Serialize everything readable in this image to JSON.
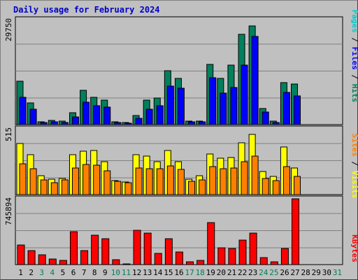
{
  "title": "Daily usage for February 2024",
  "colors": {
    "background": "#c0c0c0",
    "panel": "#c0c0c0",
    "pages": "#00cccc",
    "files": "#0000ff",
    "hits": "#00805c",
    "visits": "#ffff00",
    "sites": "#ff8000",
    "kbytes": "#ff0000",
    "weekend": "#00805c"
  },
  "chart_data": [
    {
      "type": "bar",
      "name": "hits-files-pages",
      "days": [
        "1",
        "2",
        "3",
        "4",
        "5",
        "6",
        "7",
        "8",
        "9",
        "10",
        "11",
        "12",
        "13",
        "14",
        "15",
        "16",
        "17",
        "18",
        "19",
        "20",
        "21",
        "22",
        "23",
        "24",
        "25",
        "26",
        "27",
        "28",
        "29",
        "30",
        "31"
      ],
      "ymax_label": "29750",
      "ymax": 29750,
      "grid": true,
      "legend": [
        "Pages",
        "Files",
        "Hits"
      ],
      "series": [
        {
          "name": "Hits",
          "values": [
            12300,
            6100,
            700,
            1100,
            900,
            3400,
            9700,
            7700,
            6900,
            700,
            600,
            2600,
            6900,
            7600,
            15300,
            13100,
            1000,
            1000,
            17000,
            13000,
            16800,
            25500,
            28000,
            4600,
            900,
            11900,
            11600,
            0,
            0,
            0,
            0
          ]
        },
        {
          "name": "Files",
          "values": [
            7800,
            4400,
            500,
            800,
            600,
            2100,
            6400,
            5400,
            4900,
            500,
            400,
            1800,
            4300,
            5300,
            10900,
            10300,
            700,
            700,
            13300,
            8900,
            10600,
            16800,
            24900,
            3500,
            500,
            9200,
            8200,
            0,
            0,
            0,
            0
          ]
        },
        {
          "name": "Pages",
          "values": [
            0,
            0,
            0,
            0,
            0,
            0,
            0,
            0,
            0,
            0,
            0,
            0,
            0,
            0,
            0,
            0,
            0,
            0,
            0,
            0,
            0,
            0,
            0,
            0,
            0,
            0,
            0,
            0,
            0,
            0,
            0
          ]
        }
      ]
    },
    {
      "type": "bar",
      "name": "visits-sites",
      "ymax_label": "515",
      "ymax": 515,
      "grid": true,
      "legend": [
        "Sites",
        "Visits"
      ],
      "series": [
        {
          "name": "Visits",
          "values": [
            400,
            310,
            150,
            120,
            125,
            310,
            340,
            345,
            255,
            110,
            100,
            310,
            300,
            260,
            345,
            260,
            120,
            150,
            320,
            285,
            290,
            405,
            470,
            180,
            140,
            370,
            210,
            0,
            0,
            0,
            0
          ]
        },
        {
          "name": "Sites",
          "values": [
            240,
            200,
            115,
            95,
            115,
            210,
            235,
            230,
            185,
            105,
            95,
            210,
            200,
            200,
            225,
            195,
            105,
            115,
            220,
            200,
            210,
            260,
            300,
            125,
            110,
            220,
            145,
            0,
            0,
            0,
            0
          ]
        }
      ]
    },
    {
      "type": "bar",
      "name": "kbytes",
      "ymax_label": "745894",
      "ymax": 745894,
      "grid": true,
      "legend": [
        "KBytes"
      ],
      "series": [
        {
          "name": "KBytes",
          "values": [
            223000,
            155000,
            112000,
            62000,
            51000,
            370000,
            158000,
            337000,
            294000,
            56000,
            9000,
            391000,
            358000,
            126000,
            290000,
            141000,
            29000,
            44000,
            475000,
            190000,
            181000,
            275000,
            358000,
            77000,
            28000,
            185000,
            745894,
            0,
            0,
            0,
            0
          ]
        }
      ]
    }
  ]
}
